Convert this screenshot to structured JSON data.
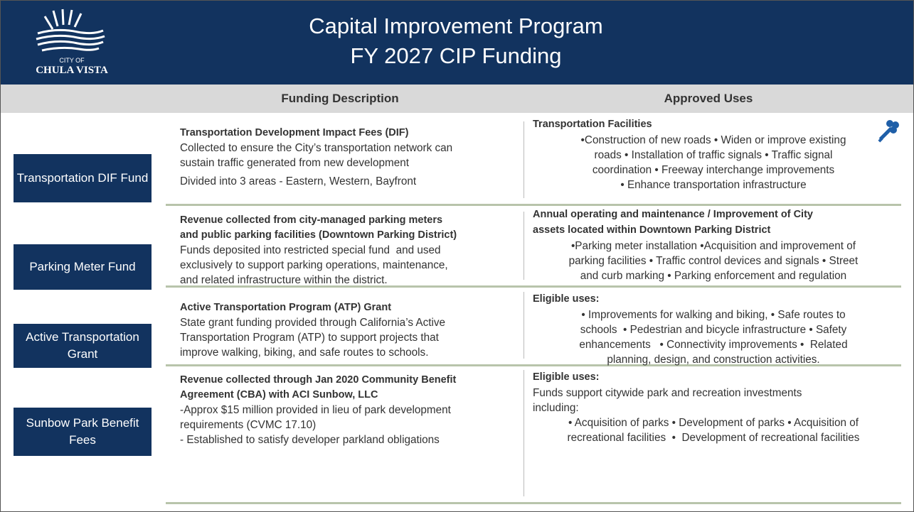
{
  "header": {
    "logo": {
      "line1": "CITY OF",
      "line2": "CHULA VISTA"
    },
    "title": [
      "Capital Improvement Program",
      "FY 2027 CIP Funding"
    ]
  },
  "table": {
    "columns": [
      "Funding Description",
      "Approved Uses"
    ],
    "rows": [
      {
        "label": "Transportation DIF Fund",
        "description": {
          "heading": [
            "Transportation Development Impact Fees (DIF)"
          ],
          "lines": [
            "Collected to ensure the City’s transportation network can",
            "sustain traffic generated from new development",
            "Divided into 3 areas - Eastern, Western, Bayfront"
          ]
        },
        "uses": {
          "heading": [
            "Transportation Facilities"
          ],
          "lines": [
            "•Construction of new roads • Widen or improve existing",
            "roads • Installation of traffic signals • Traffic signal",
            "coordination • Freeway interchange improvements",
            "• Enhance transportation infrastructure"
          ]
        }
      },
      {
        "label": "Parking Meter Fund",
        "description": {
          "heading": [
            "Revenue collected from city-managed parking meters",
            "and public parking facilities (Downtown Parking District)"
          ],
          "lines": [
            "Funds deposited into restricted special fund  and used",
            "exclusively to support parking operations, maintenance,",
            "and related infrastructure within the district."
          ]
        },
        "uses": {
          "heading": [
            "Annual operating and maintenance / Improvement of City",
            "assets located within Downtown Parking District"
          ],
          "lines": [
            "•Parking meter installation •Acquisition and improvement of",
            "parking facilities • Traffic control devices and signals • Street",
            "and curb marking • Parking enforcement and regulation"
          ]
        }
      },
      {
        "label": "Active Transportation Grant",
        "description": {
          "heading": [
            "Active Transportation Program (ATP) Grant"
          ],
          "lines": [
            "State grant funding provided through California’s Active",
            "Transportation Program (ATP) to support projects that",
            "improve walking, biking, and safe routes to schools."
          ]
        },
        "uses": {
          "heading": [
            "Eligible uses:"
          ],
          "lines": [
            "• Improvements for walking and biking, • Safe routes to",
            "schools  • Pedestrian and bicycle infrastructure • Safety",
            "enhancements   • Connectivity improvements •  Related",
            "planning, design, and construction activities."
          ]
        }
      },
      {
        "label": "Sunbow Park Benefit Fees",
        "description": {
          "heading": [
            "Revenue collected through Jan 2020 Community Benefit",
            "Agreement (CBA) with ACI Sunbow, LLC"
          ],
          "lines": [
            "-Approx $15 million provided in lieu of park development",
            "requirements (CVMC 17.10)",
            "- Established to satisfy developer parkland obligations"
          ]
        },
        "uses": {
          "heading": [
            "Eligible uses:"
          ],
          "intro": [
            "Funds support citywide park and recreation investments",
            "including:"
          ],
          "lines": [
            "• Acquisition of parks • Development of parks • Acquisition of",
            "recreational facilities  •  Development of recreational facilities"
          ]
        }
      }
    ]
  }
}
